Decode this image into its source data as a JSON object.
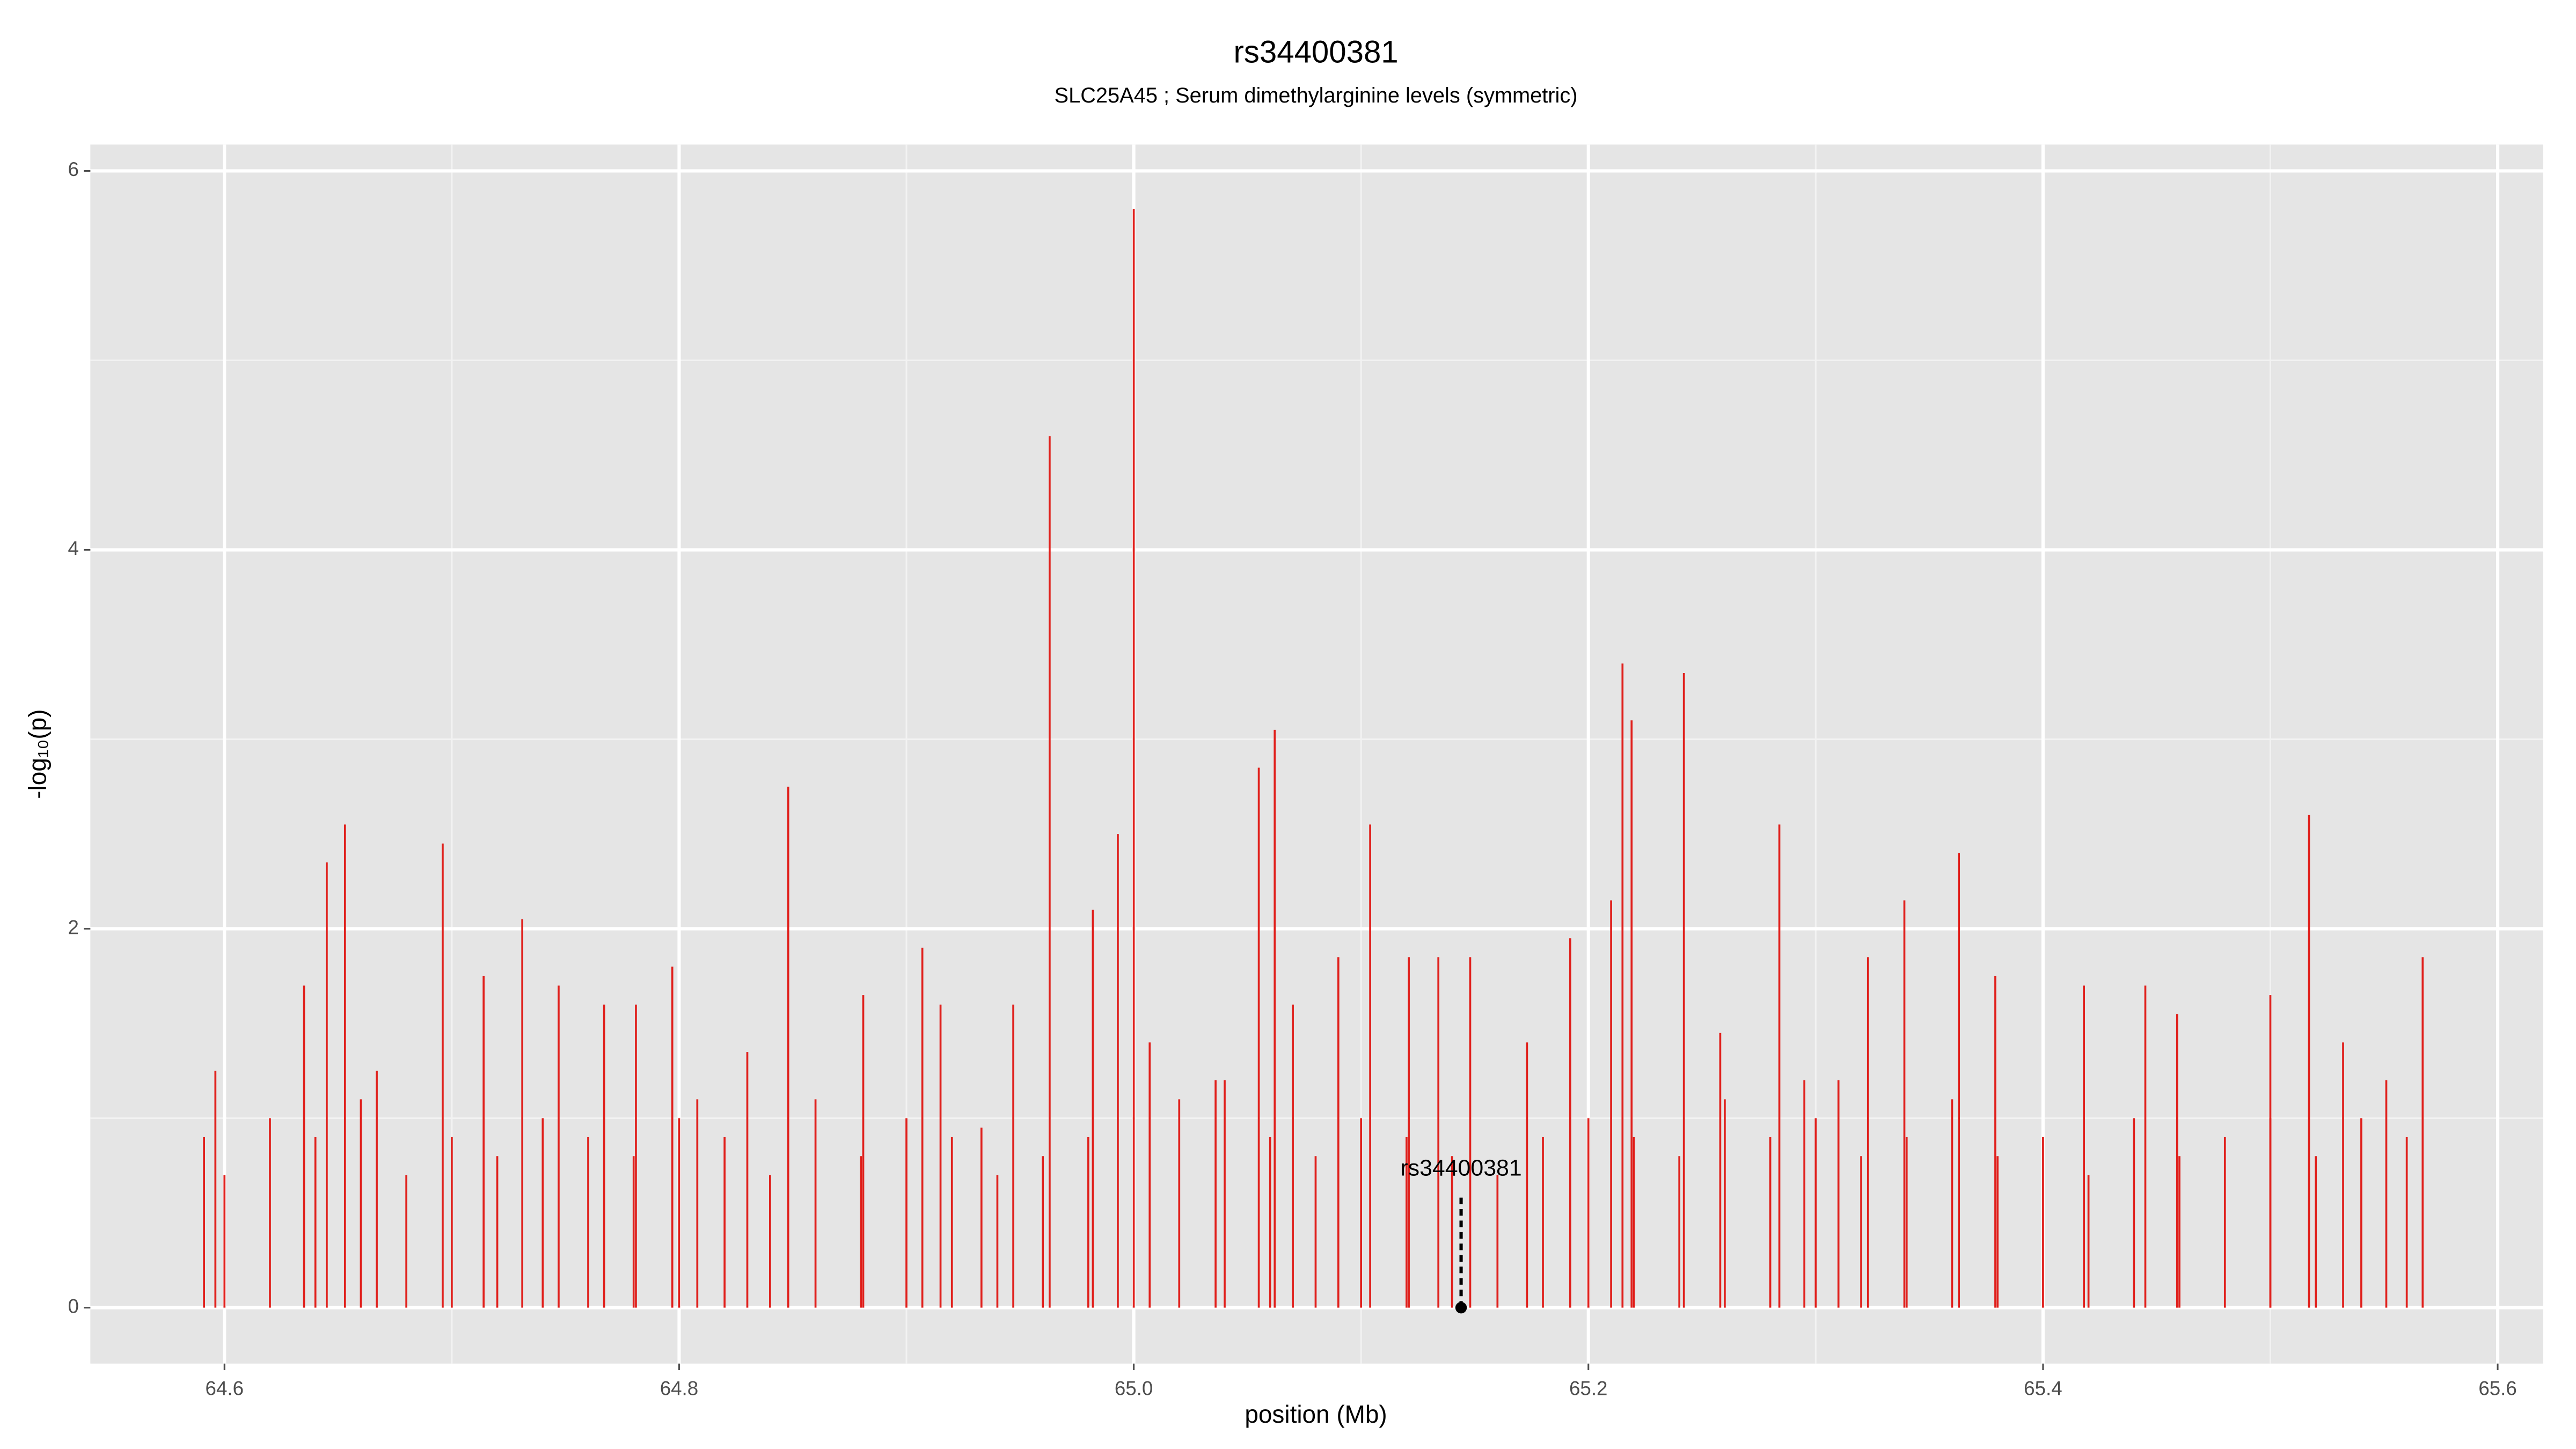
{
  "chart_data": {
    "type": "spike",
    "title": "rs34400381",
    "subtitle": "SLC25A45 ; Serum dimethylarginine levels (symmetric)",
    "xlabel": "position (Mb)",
    "ylabel": "-log₁₀(p)",
    "color": "#e0201c",
    "x": [
      64.591,
      64.596,
      64.635,
      64.645,
      64.653,
      64.667,
      64.696,
      64.714,
      64.731,
      64.747,
      64.767,
      64.781,
      64.797,
      64.808,
      64.83,
      64.848,
      64.881,
      64.907,
      64.915,
      64.933,
      64.947,
      64.963,
      64.982,
      64.993,
      65.0,
      65.007,
      65.036,
      65.055,
      65.062,
      65.07,
      65.09,
      65.104,
      65.121,
      65.134,
      65.148,
      65.173,
      65.192,
      65.21,
      65.215,
      65.219,
      65.242,
      65.258,
      65.284,
      65.295,
      65.31,
      65.323,
      65.339,
      65.363,
      65.379,
      65.418,
      65.445,
      65.459,
      65.5,
      65.517,
      65.532,
      65.551,
      65.567,
      64.6,
      64.62,
      64.64,
      64.66,
      64.68,
      64.7,
      64.72,
      64.74,
      64.76,
      64.78,
      64.8,
      64.82,
      64.84,
      64.86,
      64.88,
      64.9,
      64.92,
      64.94,
      64.96,
      64.98,
      65.02,
      65.04,
      65.06,
      65.08,
      65.1,
      65.12,
      65.14,
      65.16,
      65.18,
      65.2,
      65.22,
      65.24,
      65.26,
      65.28,
      65.3,
      65.32,
      65.34,
      65.36,
      65.38,
      65.4,
      65.42,
      65.44,
      65.46,
      65.48,
      65.5,
      65.52,
      65.54,
      65.56
    ],
    "values": [
      0.9,
      1.25,
      1.7,
      2.35,
      2.55,
      1.25,
      2.45,
      1.75,
      2.05,
      1.7,
      1.6,
      1.6,
      1.8,
      1.1,
      1.35,
      2.75,
      1.65,
      1.9,
      1.6,
      0.95,
      1.6,
      4.6,
      2.1,
      2.5,
      5.8,
      1.4,
      1.2,
      2.85,
      3.05,
      1.6,
      1.85,
      2.55,
      1.85,
      1.85,
      1.85,
      1.4,
      1.95,
      2.15,
      3.4,
      3.1,
      3.35,
      1.45,
      2.55,
      1.2,
      1.2,
      1.85,
      2.15,
      2.4,
      1.75,
      1.7,
      1.7,
      1.55,
      1.65,
      2.6,
      1.4,
      1.2,
      1.85,
      0.7,
      1.0,
      0.9,
      1.1,
      0.7,
      0.9,
      0.8,
      1.0,
      0.9,
      0.8,
      1.0,
      0.9,
      0.7,
      1.1,
      0.8,
      1.0,
      0.9,
      0.7,
      0.8,
      0.9,
      1.1,
      1.2,
      0.9,
      0.8,
      1.0,
      0.9,
      0.8,
      0.7,
      0.9,
      1.0,
      0.9,
      0.8,
      1.1,
      0.9,
      1.0,
      0.8,
      0.9,
      1.1,
      0.8,
      0.9,
      0.7,
      1.0,
      0.8,
      0.9,
      1.0,
      0.8,
      1.0,
      0.9
    ],
    "highlight": {
      "label": "rs34400381",
      "x": 65.144,
      "y": 0,
      "label_y": 0.73
    },
    "xlim": [
      64.541,
      65.62
    ],
    "ylim": [
      -0.295,
      6.139
    ],
    "xticks": [
      64.6,
      64.8,
      {
        "value": 65.0,
        "label": "65.0"
      },
      65.2,
      65.4,
      65.6
    ],
    "yticks": [
      0,
      2,
      4,
      6
    ],
    "x_minor_grid": [
      64.7,
      64.9,
      65.1,
      65.3,
      65.5
    ],
    "y_minor_grid": [
      1,
      3,
      5
    ],
    "grid": true
  }
}
